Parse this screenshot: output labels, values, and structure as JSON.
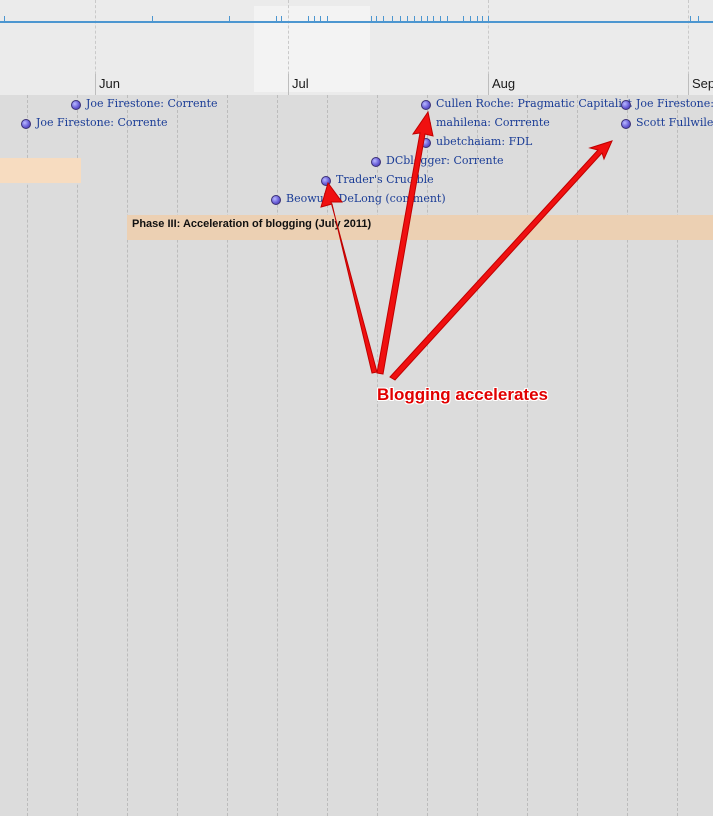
{
  "timeline": {
    "months": [
      "Jun",
      "Jul",
      "Aug",
      "Sep"
    ],
    "events": [
      {
        "label": "Joe Firestone: Corrente"
      },
      {
        "label": "Joe Firestone: Corrente"
      },
      {
        "label": "Cullen Roche: Pragmatic Capitalist"
      },
      {
        "label": "mahilena: Corrrente"
      },
      {
        "label": "ubetchaiam: FDL"
      },
      {
        "label": "DCblogger: Corrente"
      },
      {
        "label": "Trader's Crucible"
      },
      {
        "label": "Beowulf: DeLong (comment)"
      },
      {
        "label": "Joe Firestone: C"
      },
      {
        "label": "Scott Fullwiler:"
      }
    ],
    "phase": {
      "label": "Phase III: Acceleration of blogging (July 2011)"
    }
  },
  "annotation": {
    "text": "Blogging accelerates",
    "color": "#e10000"
  },
  "colors": {
    "overview_line": "#4c96d0",
    "phase_band": "#ecd0b3",
    "event_text": "#1a3c96"
  }
}
